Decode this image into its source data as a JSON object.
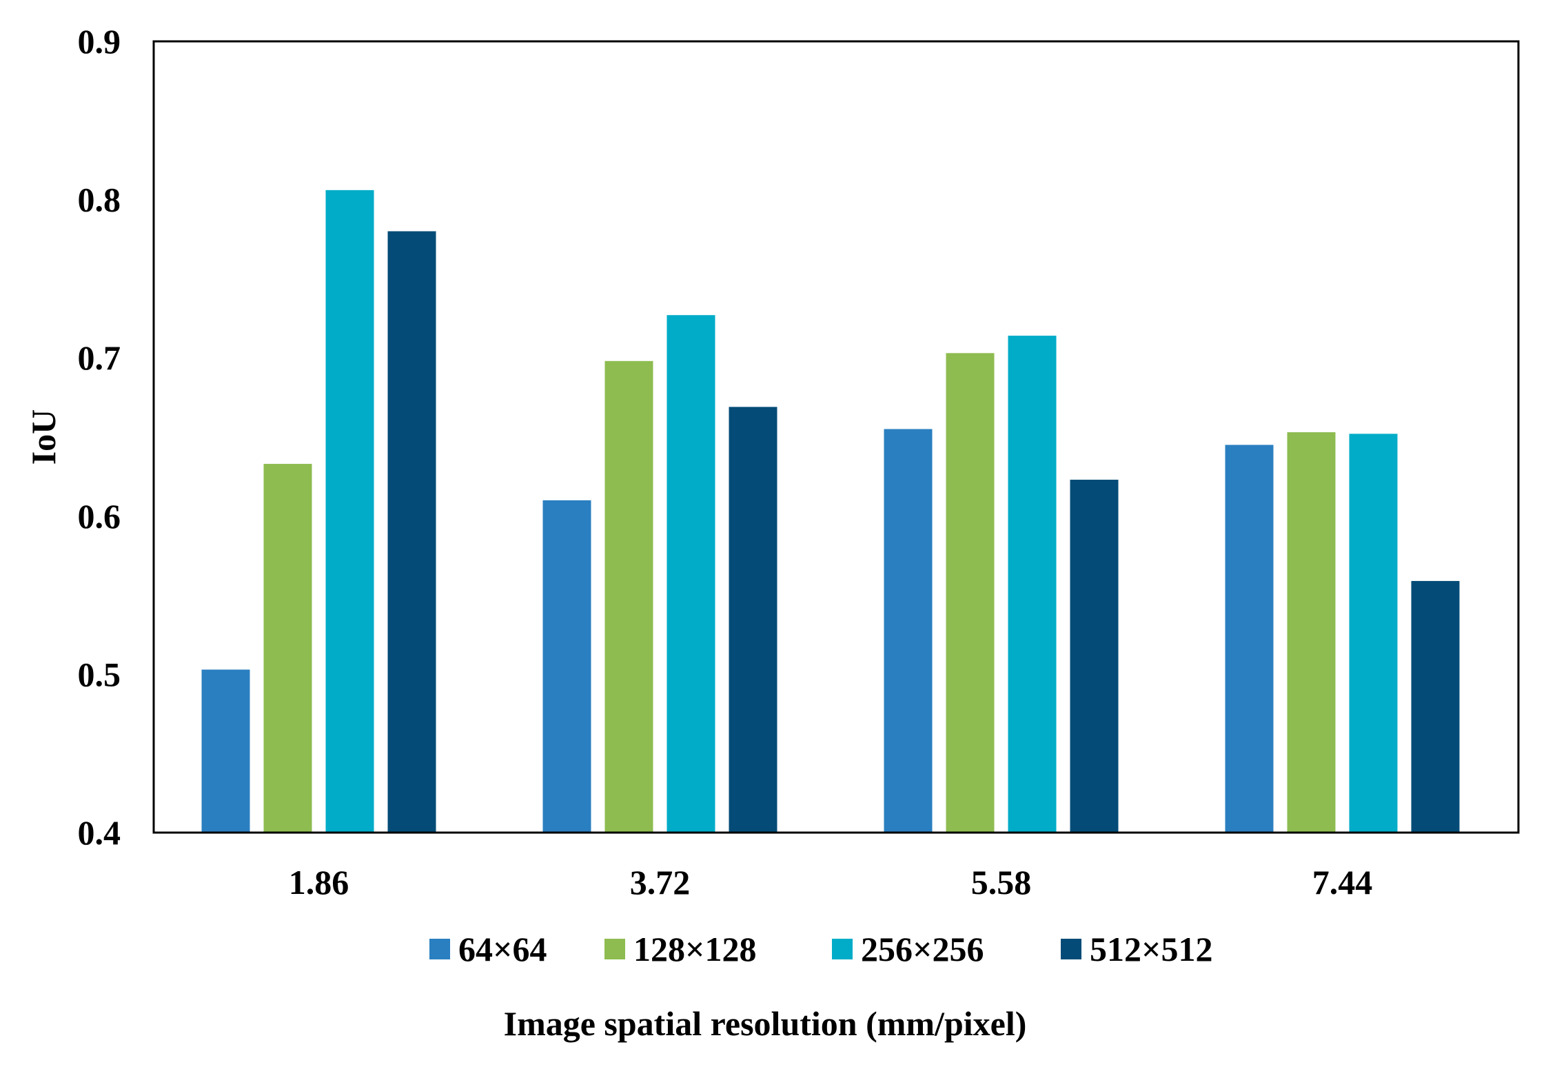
{
  "chart_data": {
    "type": "bar",
    "title": "",
    "xlabel": "Image spatial resolution (mm/pixel)",
    "ylabel": "IoU",
    "categories": [
      "1.86",
      "3.72",
      "5.58",
      "7.44"
    ],
    "ylim": [
      0.4,
      0.9
    ],
    "yticks": [
      "0.4",
      "0.5",
      "0.6",
      "0.7",
      "0.8",
      "0.9"
    ],
    "grid": false,
    "legend_position": "bottom",
    "series": [
      {
        "name": "64×64",
        "color": "#2A7FC0",
        "values": [
          0.503,
          0.61,
          0.655,
          0.645
        ]
      },
      {
        "name": "128×128",
        "color": "#8EBC50",
        "values": [
          0.633,
          0.698,
          0.703,
          0.653
        ]
      },
      {
        "name": "256×256",
        "color": "#00ACC8",
        "values": [
          0.806,
          0.727,
          0.714,
          0.652
        ]
      },
      {
        "name": "512×512",
        "color": "#044C77",
        "values": [
          0.78,
          0.669,
          0.623,
          0.559
        ]
      }
    ]
  }
}
